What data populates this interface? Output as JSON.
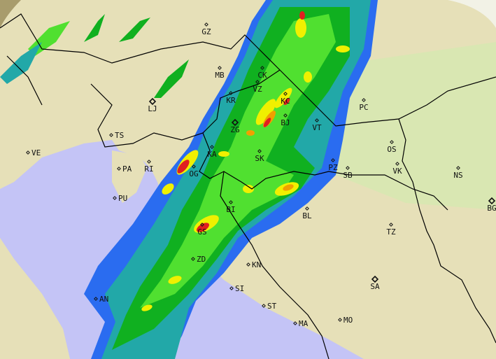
{
  "map": {
    "colors": {
      "land": "#e6e0b8",
      "land_shade": "#d8cf9e",
      "lowland": "#d6e8b0",
      "sea": "#c4c4f6",
      "outside_range": "#a89c6c",
      "border": "#000000",
      "coast": "#888888",
      "radar_blue": "#2a6cf0",
      "radar_teal": "#22a8a8",
      "radar_green": "#10b020",
      "radar_light_green": "#50e030",
      "radar_yellow": "#f0f000",
      "radar_orange": "#f0a000",
      "radar_red": "#e02020"
    },
    "cities": [
      {
        "code": "GZ",
        "major": false
      },
      {
        "code": "MB",
        "major": false
      },
      {
        "code": "LJ",
        "major": true
      },
      {
        "code": "CK",
        "major": false
      },
      {
        "code": "VZ",
        "major": false
      },
      {
        "code": "KR",
        "major": false
      },
      {
        "code": "KC",
        "major": false
      },
      {
        "code": "PC",
        "major": false
      },
      {
        "code": "BJ",
        "major": false
      },
      {
        "code": "VT",
        "major": false
      },
      {
        "code": "ZG",
        "major": true
      },
      {
        "code": "TS",
        "major": false
      },
      {
        "code": "VE",
        "major": false
      },
      {
        "code": "RI",
        "major": false
      },
      {
        "code": "KA",
        "major": false
      },
      {
        "code": "SK",
        "major": false
      },
      {
        "code": "OS",
        "major": false
      },
      {
        "code": "PA",
        "major": false
      },
      {
        "code": "OG",
        "major": false
      },
      {
        "code": "PZ",
        "major": false
      },
      {
        "code": "SB",
        "major": false
      },
      {
        "code": "VK",
        "major": false
      },
      {
        "code": "NS",
        "major": false
      },
      {
        "code": "PU",
        "major": false
      },
      {
        "code": "BG",
        "major": true
      },
      {
        "code": "BI",
        "major": false
      },
      {
        "code": "BL",
        "major": false
      },
      {
        "code": "GS",
        "major": false
      },
      {
        "code": "TZ",
        "major": false
      },
      {
        "code": "ZD",
        "major": false
      },
      {
        "code": "KN",
        "major": false
      },
      {
        "code": "AN",
        "major": false
      },
      {
        "code": "SI",
        "major": false
      },
      {
        "code": "ST",
        "major": false
      },
      {
        "code": "SA",
        "major": true
      },
      {
        "code": "MA",
        "major": false
      },
      {
        "code": "MO",
        "major": false
      }
    ]
  }
}
